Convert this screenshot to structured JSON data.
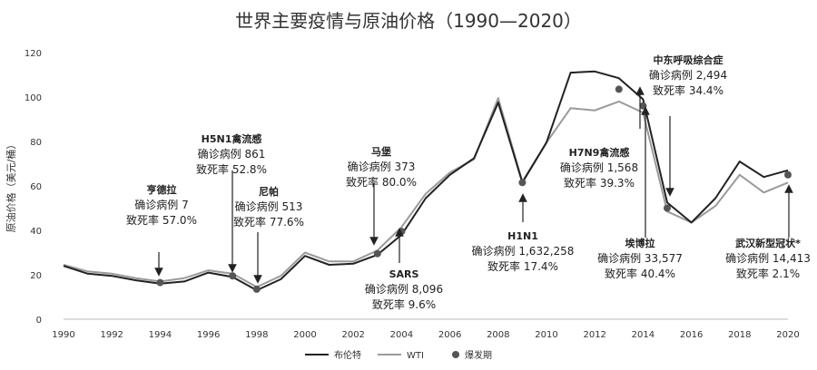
{
  "chart_data": {
    "type": "line",
    "title": "世界主要疫情与原油价格（1990—2020）",
    "ylabel": "原油价格（美元/桶）",
    "ylim": [
      0,
      120
    ],
    "yticks": [
      0,
      20,
      40,
      60,
      80,
      100,
      120
    ],
    "xlim": [
      1990,
      2020
    ],
    "xticks": [
      1990,
      1992,
      1994,
      1996,
      1998,
      2000,
      2002,
      2004,
      2006,
      2008,
      2010,
      2012,
      2014,
      2016,
      2018,
      2020
    ],
    "x": [
      1990,
      1991,
      1992,
      1993,
      1994,
      1995,
      1996,
      1997,
      1998,
      1999,
      2000,
      2001,
      2002,
      2003,
      2004,
      2005,
      2006,
      2007,
      2008,
      2009,
      2010,
      2011,
      2012,
      2013,
      2014,
      2015,
      2016,
      2017,
      2018,
      2019,
      2020
    ],
    "series": [
      {
        "name": "布伦特",
        "color": "#222222",
        "values": [
          24,
          20.5,
          19.5,
          17.5,
          16,
          17,
          21,
          19,
          13,
          18,
          28.5,
          24.5,
          25,
          29,
          38,
          54.5,
          65,
          72.5,
          97.5,
          61.5,
          79.5,
          111,
          111.5,
          108.5,
          99,
          52.5,
          43.5,
          54.5,
          71,
          64,
          67
        ]
      },
      {
        "name": "WTI",
        "color": "#9a9a9a",
        "values": [
          24.5,
          21.5,
          20.5,
          18.5,
          17,
          18.5,
          22,
          20.5,
          14.5,
          19.5,
          30,
          26,
          26,
          31,
          41.5,
          56.5,
          66,
          72,
          99.5,
          62,
          79.5,
          95,
          94,
          98,
          93,
          48.5,
          43.5,
          51,
          65,
          57,
          61.5
        ]
      },
      {
        "name": "爆发期",
        "color": "#555555",
        "type": "scatter",
        "points": [
          [
            1994,
            16.5
          ],
          [
            1997,
            19.5
          ],
          [
            1998,
            13.5
          ],
          [
            2003,
            29.5
          ],
          [
            2004,
            39.5
          ],
          [
            2009,
            61.5
          ],
          [
            2013,
            103.5
          ],
          [
            2014,
            96
          ],
          [
            2015,
            50
          ],
          [
            2020,
            65
          ]
        ]
      }
    ],
    "legend": "bottom",
    "grid": false,
    "annotations": [
      {
        "lines": [
          "亨德拉",
          "确诊病例 7",
          "致死率 57.0%"
        ],
        "point": [
          1994,
          16.5
        ]
      },
      {
        "lines": [
          "H5N1禽流感",
          "确诊病例 861",
          "致死率 52.8%"
        ],
        "point": [
          1997,
          19.5
        ]
      },
      {
        "lines": [
          "尼帕",
          "确诊病例 513",
          "致死率 77.6%"
        ],
        "point": [
          1998,
          13.5
        ]
      },
      {
        "lines": [
          "马堡",
          "确诊病例 373",
          "致死率 80.0%"
        ],
        "point": [
          2003,
          29.5
        ]
      },
      {
        "lines": [
          "SARS",
          "确诊病例 8,096",
          "致死率 9.6%"
        ],
        "point": [
          2004,
          39.5
        ]
      },
      {
        "lines": [
          "H1N1",
          "确诊病例 1,632,258",
          "致死率 17.4%"
        ],
        "point": [
          2009,
          61.5
        ]
      },
      {
        "lines": [
          "H7N9禽流感",
          "确诊病例 1,568",
          "致死率 39.3%"
        ],
        "point": [
          2013,
          103.5
        ]
      },
      {
        "lines": [
          "埃博拉",
          "确诊病例 33,577",
          "致死率 40.4%"
        ],
        "point": [
          2014,
          96
        ]
      },
      {
        "lines": [
          "中东呼吸综合症",
          "确诊病例 2,494",
          "致死率 34.4%"
        ],
        "point": [
          2015,
          50
        ]
      },
      {
        "lines": [
          "武汉新型冠状*",
          "确诊病例 14,413",
          "致死率 2.1%"
        ],
        "point": [
          2020,
          65
        ]
      }
    ]
  }
}
